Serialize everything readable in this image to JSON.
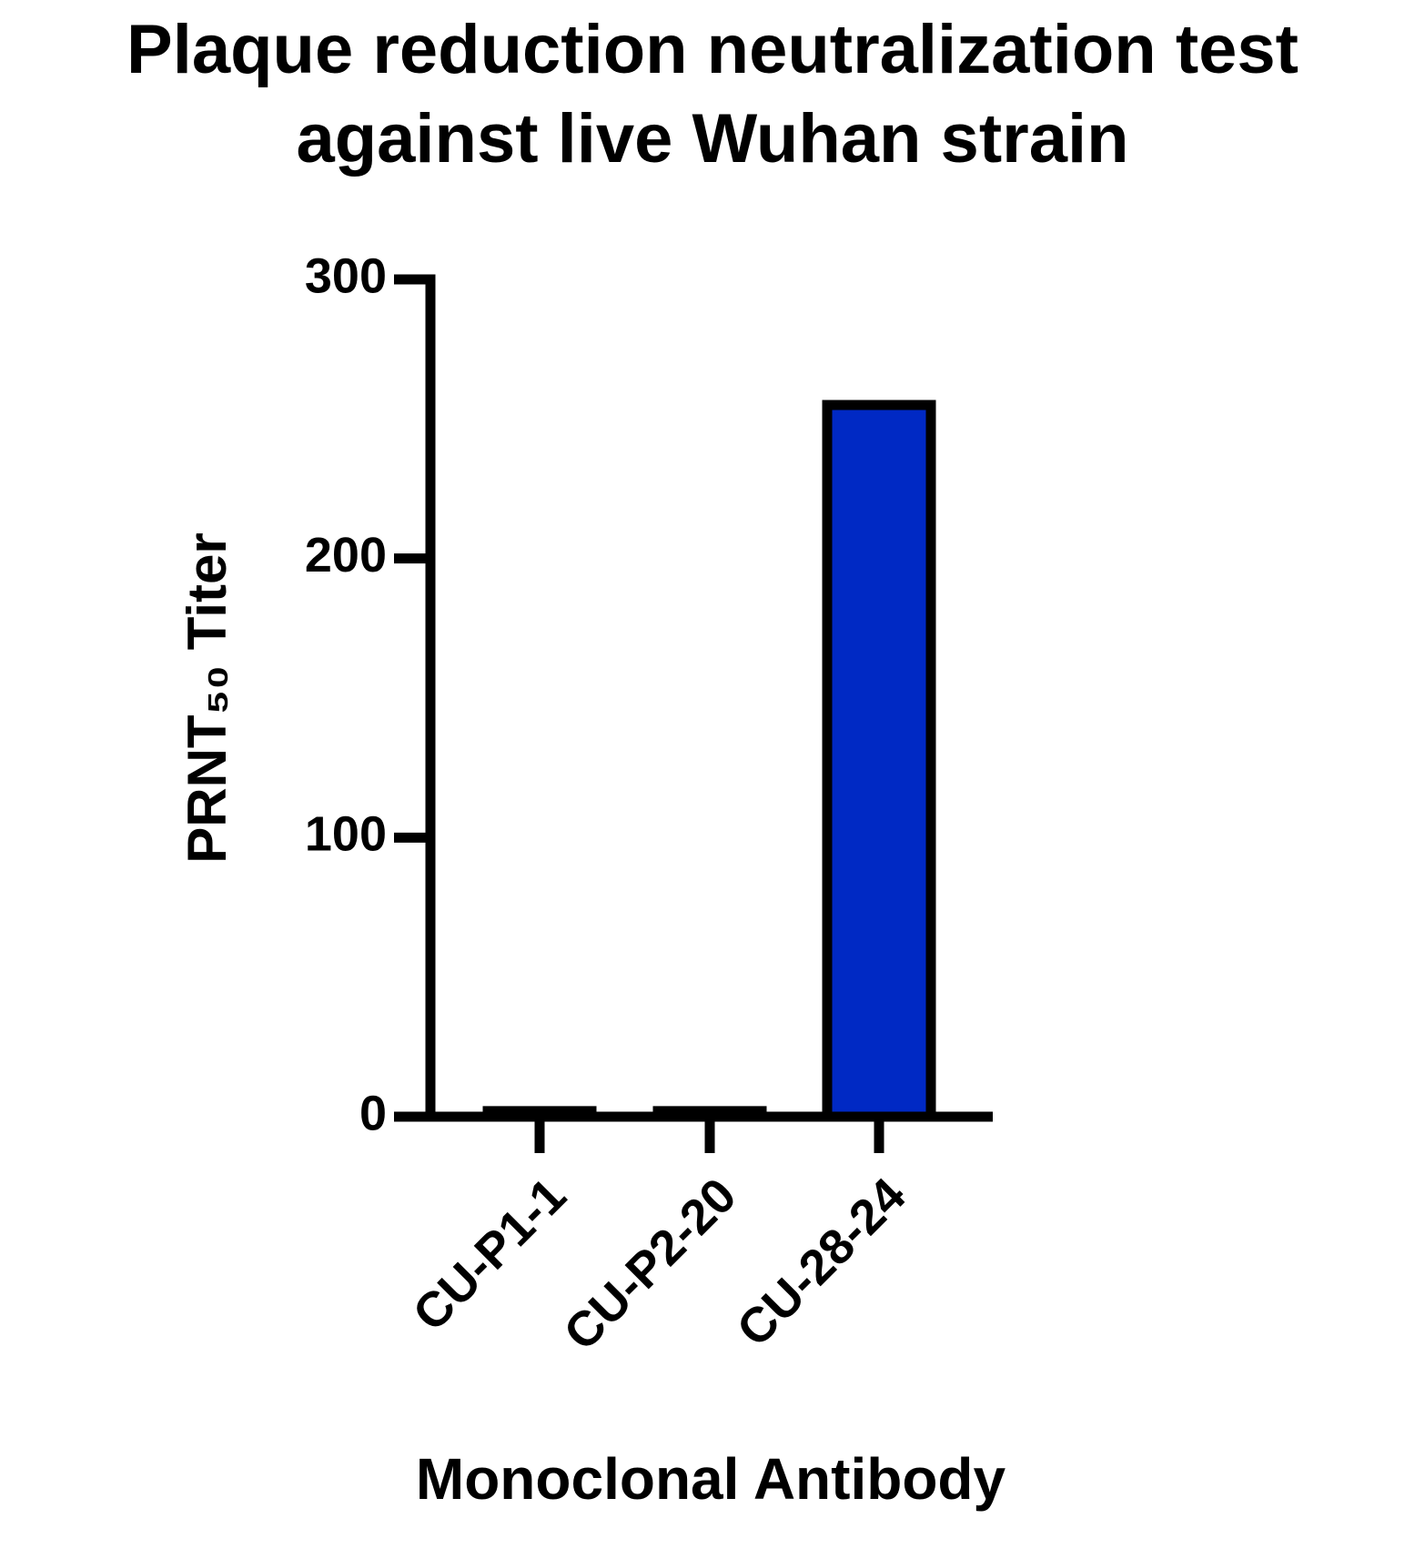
{
  "chart_data": {
    "type": "bar",
    "title": [
      "Plaque reduction neutralization test",
      "against live Wuhan strain"
    ],
    "x_label": "Monoclonal Antibody",
    "y_label": "PRNT₅₀ Titer",
    "categories": [
      "CU-P1-1",
      "CU-P2-20",
      "CU-28-24"
    ],
    "values": [
      2,
      2,
      255
    ],
    "color": "#0029c4",
    "ylim": [
      0,
      300
    ],
    "yticks": [
      0,
      100,
      200,
      300
    ],
    "grid": false
  }
}
